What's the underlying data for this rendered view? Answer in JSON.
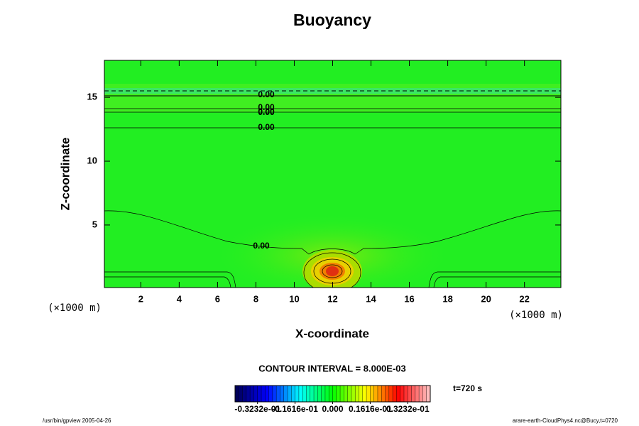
{
  "chart_data": {
    "type": "contour",
    "title": "Buoyancy",
    "xlabel": "X-coordinate",
    "ylabel": "Z-coordinate",
    "x_unit": "(×1000 m)",
    "y_unit": "(×1000 m)",
    "xlim": [
      0.1,
      23.9
    ],
    "ylim": [
      0.1,
      17.9
    ],
    "xticks": [
      2,
      4,
      6,
      8,
      10,
      12,
      14,
      16,
      18,
      20,
      22
    ],
    "yticks": [
      5,
      10,
      15
    ],
    "contour_labels": [
      "0.00",
      "0.00",
      "0.00",
      "0.00",
      "0.00",
      "0.00"
    ],
    "contour_interval": "CONTOUR INTERVAL = 8.000E-03",
    "time_label": "t=720 s",
    "colorbar": {
      "lim": [
        -0.042,
        0.042
      ],
      "ticks": [
        {
          "value": -0.03232,
          "label": "-0.3232e-01"
        },
        {
          "value": -0.01616,
          "label": "-0.1616e-01"
        },
        {
          "value": 0,
          "label": "0.000"
        },
        {
          "value": 0.01616,
          "label": "0.1616e-01"
        },
        {
          "value": 0.03232,
          "label": "0.3232e-01"
        }
      ],
      "colors": [
        "#000050",
        "#0000ff",
        "#00ffff",
        "#00ff00",
        "#ffff00",
        "#ff0000",
        "#ffc8c8"
      ]
    },
    "footer_left": "/usr/bin/gpview 2005-04-26",
    "footer_right": "arare-earth-CloudPhys4.nc@Bucy,t=0720"
  }
}
